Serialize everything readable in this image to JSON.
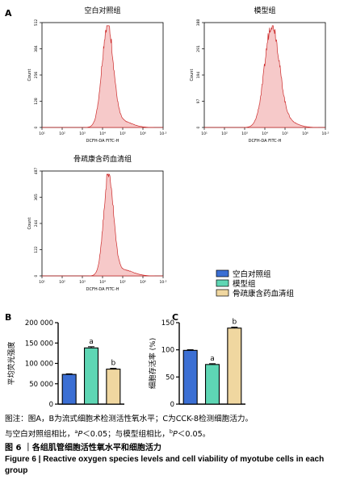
{
  "panels": {
    "A": "A",
    "B": "B",
    "C": "C"
  },
  "flow": {
    "xlabel": "DCFH-DA FITC-H",
    "ylabel": "Count",
    "xticks": [
      "10¹",
      "10²",
      "10³",
      "10⁴",
      "10⁵",
      "10⁶",
      "10·⁵"
    ],
    "color": "#cc2a2a",
    "fill": "#f6c9c9",
    "plots": [
      {
        "title": "空白对照组",
        "ymax": "512",
        "yticks": [
          "0",
          "128",
          "256",
          "384",
          "512"
        ],
        "peak_log": 4.25,
        "width": 0.28
      },
      {
        "title": "模型组",
        "ymax": "388",
        "yticks": [
          "0",
          "97",
          "194",
          "291",
          "388"
        ],
        "peak_log": 4.35,
        "width": 0.36
      },
      {
        "title": "骨疏康含药血清组",
        "ymax": "487",
        "yticks": [
          "0",
          "122",
          "244",
          "365",
          "487"
        ],
        "peak_log": 4.3,
        "width": 0.24
      }
    ]
  },
  "legend": {
    "items": [
      {
        "label": "空白对照组",
        "color": "#3b6fd4"
      },
      {
        "label": "模型组",
        "color": "#5ed6b4"
      },
      {
        "label": "骨疏康含药血清组",
        "color": "#f0d7a0"
      }
    ]
  },
  "chart_data": [
    {
      "type": "bar",
      "panel": "B",
      "categories": [
        "空白对照组",
        "模型组",
        "骨疏康含药血清组"
      ],
      "values": [
        73000,
        138000,
        86000
      ],
      "errors": [
        1500,
        3000,
        2000
      ],
      "annotations": [
        "",
        "a",
        "b"
      ],
      "ylabel": "平均荧光强度",
      "ylim": [
        0,
        200000
      ],
      "yticks": [
        "0",
        "50 000",
        "100 000",
        "150 000",
        "200 000"
      ]
    },
    {
      "type": "bar",
      "panel": "C",
      "categories": [
        "空白对照组",
        "模型组",
        "骨疏康含药血清组"
      ],
      "values": [
        99,
        73,
        140
      ],
      "errors": [
        1.2,
        1.5,
        1.8
      ],
      "annotations": [
        "",
        "a",
        "b"
      ],
      "ylabel": "细胞存活率 (%)",
      "ylim": [
        0,
        150
      ],
      "yticks": [
        "0",
        "50",
        "100",
        "150"
      ]
    }
  ],
  "caption": {
    "line1": "图注：图A，B为流式细胞术检测活性氧水平；C为CCK-8检测细胞活力。",
    "line2_pre": "与空白对照组相比，",
    "line2_sup1": "a",
    "line2_p1": "P",
    "line2_mid": "＜0.05；与模型组相比，",
    "line2_sup2": "b",
    "line2_p2": "P",
    "line2_post": "＜0.05。",
    "title_cn": "图 6 ｜各组肌管细胞活性氧水平和细胞活力",
    "title_en": "Figure 6 | Reactive oxygen species levels and cell viability of myotube cells in each group"
  }
}
